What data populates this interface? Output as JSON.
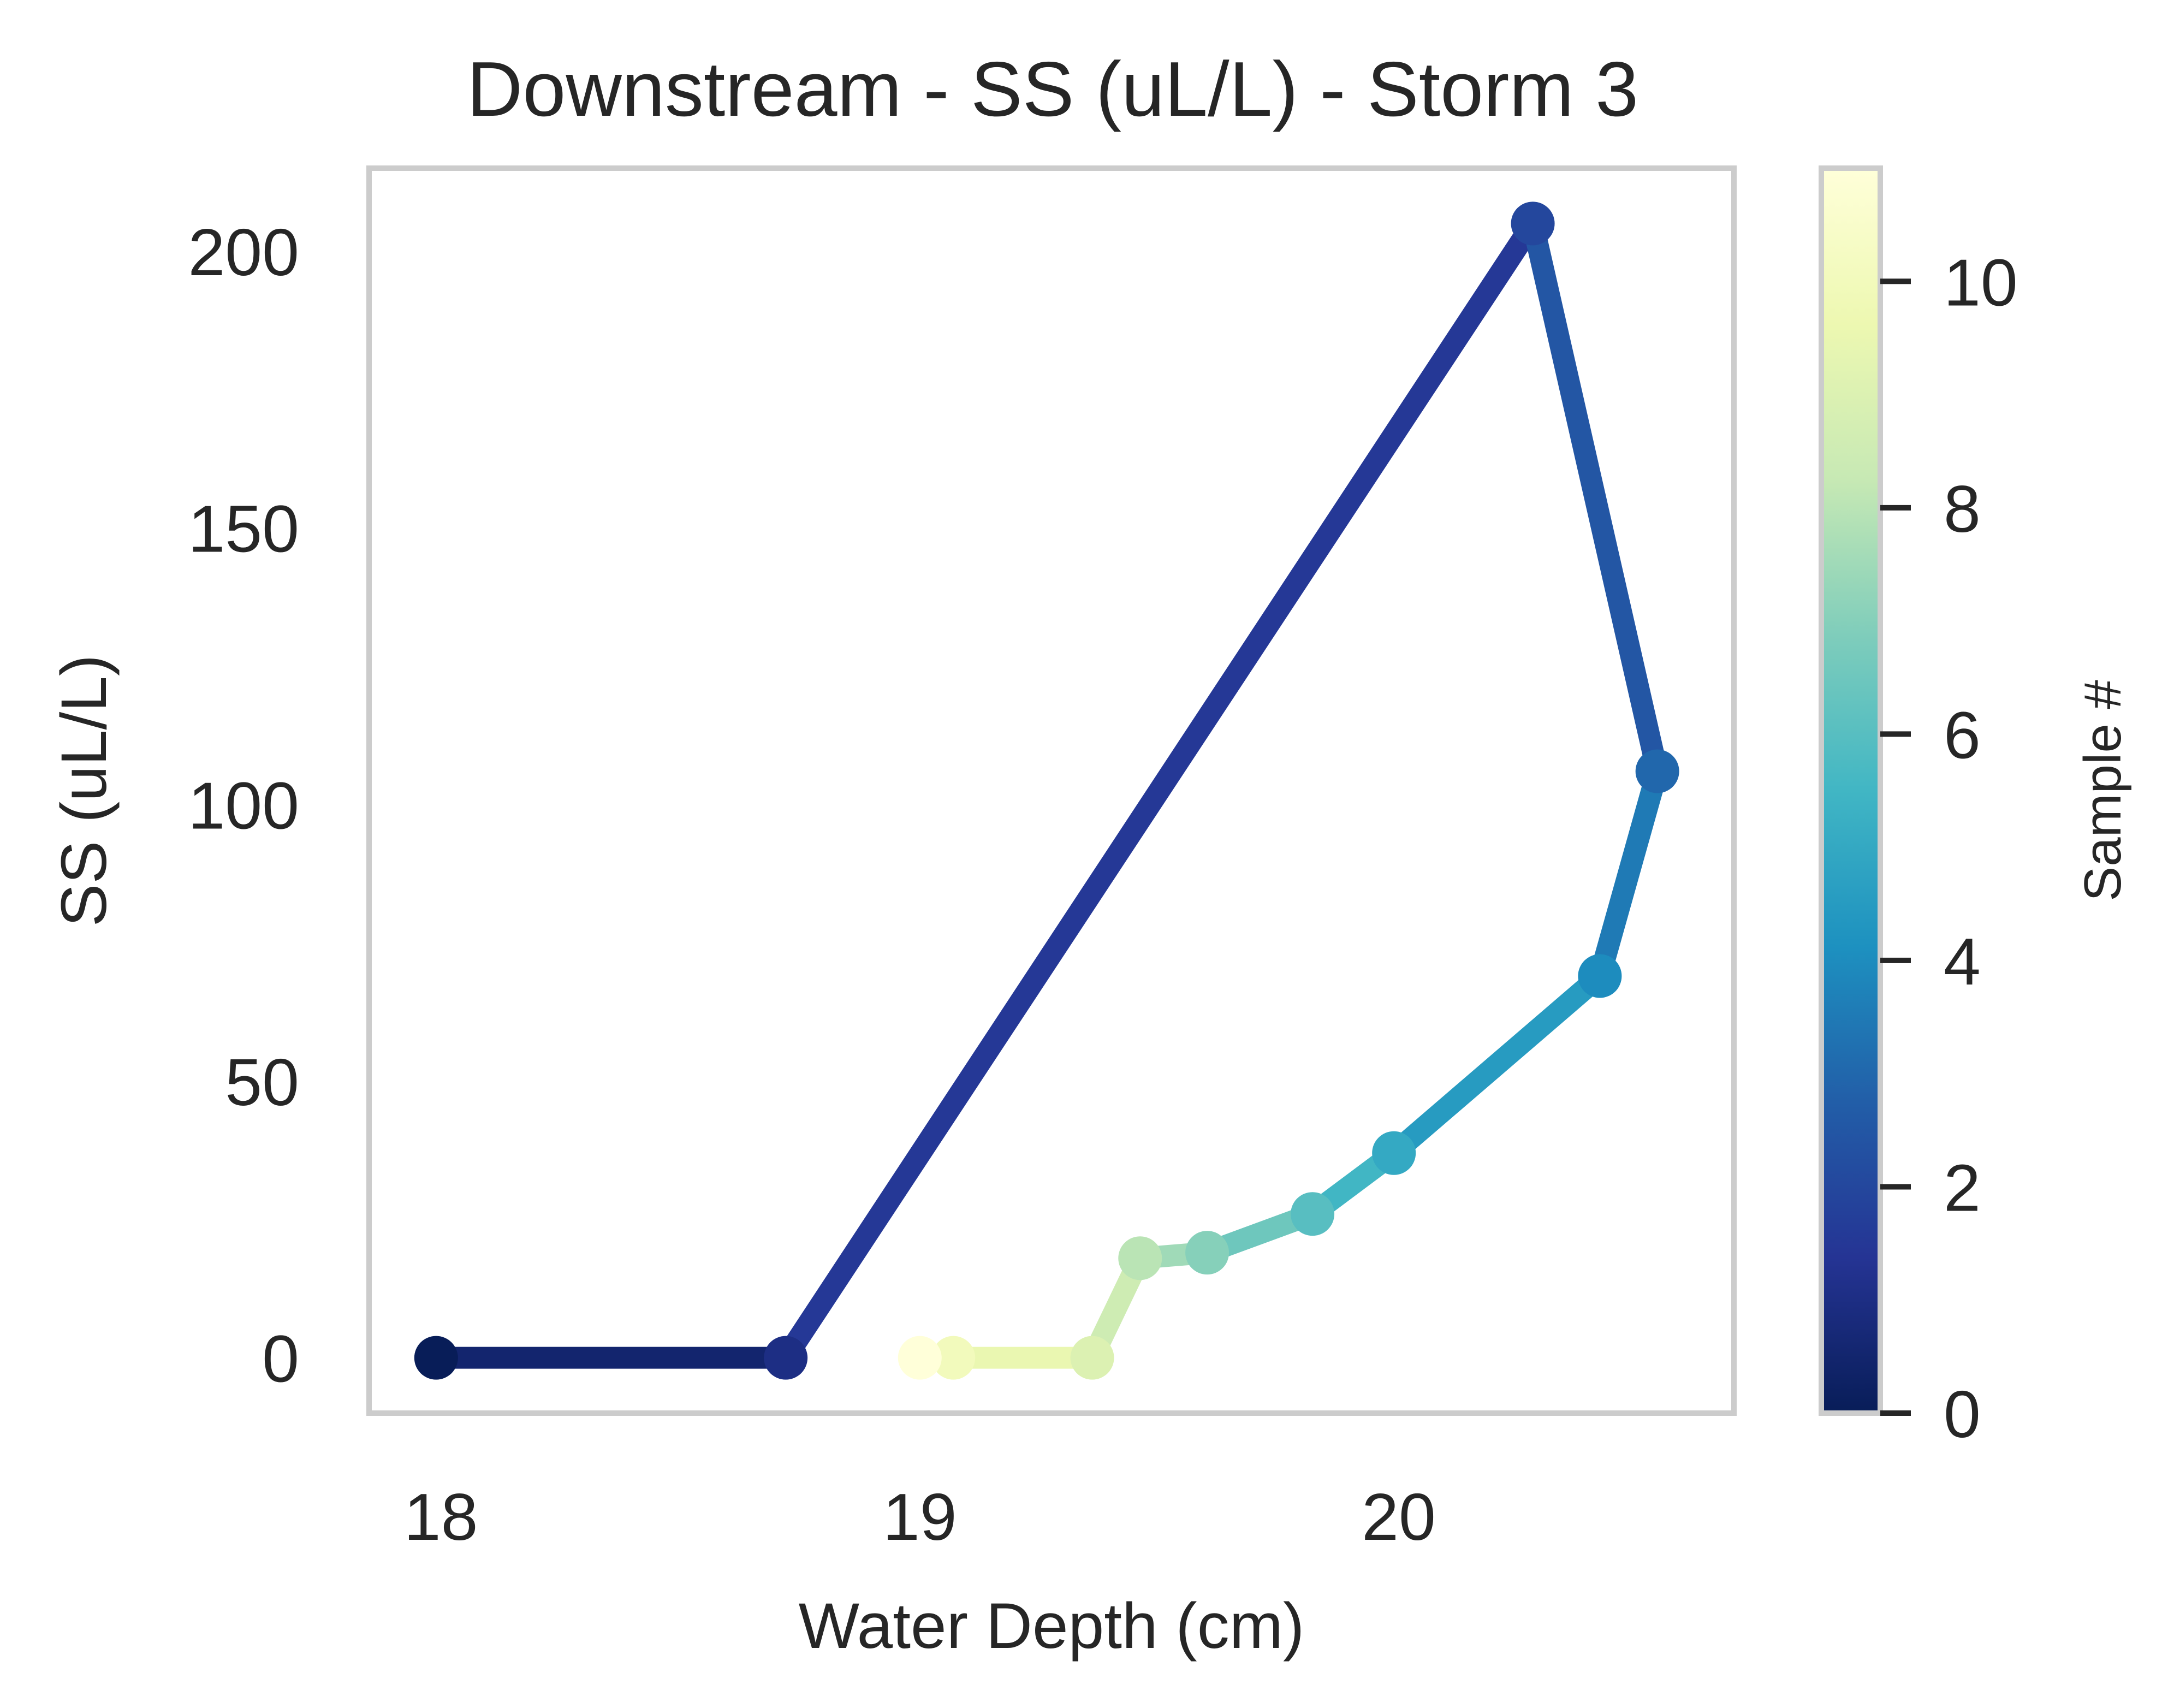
{
  "chart_data": {
    "type": "line",
    "title": "Downstream - SS (uL/L) - Storm 3",
    "xlabel": "Water Depth (cm)",
    "ylabel": "SS (uL/L)",
    "xlim": [
      17.85,
      20.7
    ],
    "ylim": [
      -10,
      215
    ],
    "xticks": [
      18,
      19,
      20
    ],
    "yticks": [
      0,
      50,
      100,
      150,
      200
    ],
    "grid": false,
    "colormap": "YlGnBu_r",
    "colorbar": {
      "label": "Sample #",
      "range": [
        0,
        11
      ],
      "ticks": [
        0,
        2,
        4,
        6,
        8,
        10
      ]
    },
    "series": [
      {
        "points": [
          {
            "sample": 0,
            "x": 17.99,
            "y": 0
          },
          {
            "sample": 1,
            "x": 18.72,
            "y": 0
          },
          {
            "sample": 2,
            "x": 20.28,
            "y": 205
          },
          {
            "sample": 3,
            "x": 20.54,
            "y": 106
          },
          {
            "sample": 4,
            "x": 20.42,
            "y": 69
          },
          {
            "sample": 5,
            "x": 19.99,
            "y": 37
          },
          {
            "sample": 6,
            "x": 19.82,
            "y": 26
          },
          {
            "sample": 7,
            "x": 19.6,
            "y": 19
          },
          {
            "sample": 8,
            "x": 19.46,
            "y": 18
          },
          {
            "sample": 9,
            "x": 19.36,
            "y": 0
          },
          {
            "sample": 10,
            "x": 19.07,
            "y": 0
          },
          {
            "sample": 11,
            "x": 19.0,
            "y": 0
          }
        ]
      }
    ]
  },
  "colors": {
    "frame": "#cccccc",
    "text": "#262626",
    "colormap_stops": [
      "#081d58",
      "#253494",
      "#225ea8",
      "#1d91c0",
      "#41b6c4",
      "#7fcdbb",
      "#c7e9b4",
      "#edf8b1",
      "#ffffd9"
    ]
  }
}
